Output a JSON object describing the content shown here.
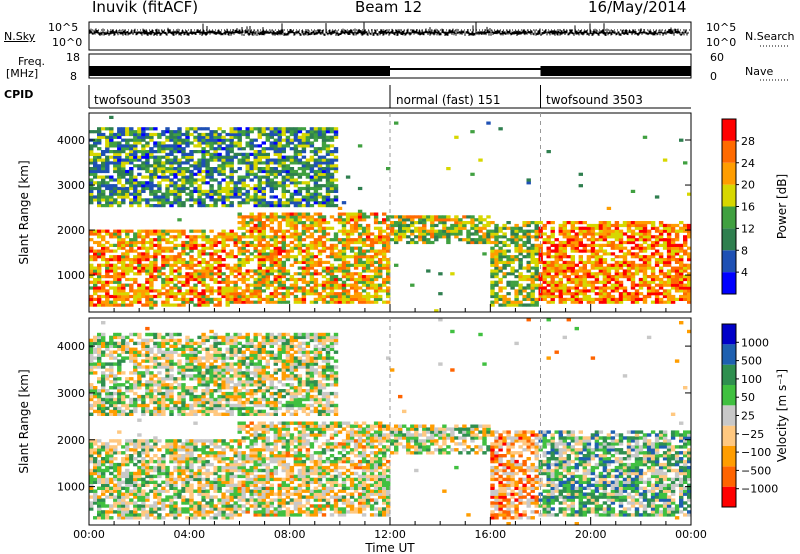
{
  "header": {
    "station": "Inuvik (fitACF)",
    "beam": "Beam 12",
    "date": "16/May/2014"
  },
  "strips": {
    "nsky_label": "N.Sky",
    "nsearch_label": "N.Search",
    "freq_label_top": "Freq.",
    "freq_label_unit": "[MHz]",
    "nave_label": "Nave",
    "cpid_label": "CPID",
    "noise_left_ticks": [
      "10^5",
      "10^0"
    ],
    "noise_right_ticks": [
      "10^5",
      "10^0"
    ],
    "freq_ticks": [
      "18",
      "8"
    ],
    "nave_ticks": [
      "60",
      "0"
    ]
  },
  "cpid_modes": [
    {
      "name": "twofsound 3503",
      "start_hour": 0
    },
    {
      "name": "normal (fast) 151",
      "start_hour": 12
    },
    {
      "name": "twofsound 3503",
      "start_hour": 18
    }
  ],
  "colors": {
    "power_scale": [
      "#0000ff",
      "#1e50b4",
      "#2f7f4f",
      "#40a040",
      "#d7d700",
      "#ff9d00",
      "#ff6a00",
      "#ff0000"
    ],
    "velocity_scale": [
      "#ff0000",
      "#ff6400",
      "#ff9d00",
      "#ffc880",
      "#c8c8c8",
      "#40c040",
      "#2f8f4f",
      "#1e60b0",
      "#0000c8"
    ]
  },
  "chart_data": [
    {
      "type": "heatmap",
      "panel": "power",
      "ylabel": "Slant Range [km]",
      "x_range_hours": [
        0,
        24
      ],
      "ylim": [
        180,
        4600
      ],
      "yticks": [
        1000,
        2000,
        3000,
        4000
      ],
      "colorbar": {
        "label": "Power [dB]",
        "ticks": [
          "28",
          "24",
          "20",
          "16",
          "12",
          "8",
          "4"
        ]
      },
      "echo_bands": [
        {
          "t0": 0,
          "t1": 6,
          "r0": 300,
          "r1": 2000,
          "level": 0.7
        },
        {
          "t0": 6,
          "t1": 12,
          "r0": 400,
          "r1": 2400,
          "level": 0.65
        },
        {
          "t0": 12,
          "t1": 16,
          "r0": 1700,
          "r1": 2300,
          "level": 0.55
        },
        {
          "t0": 16,
          "t1": 18,
          "r0": 300,
          "r1": 2200,
          "level": 0.5
        },
        {
          "t0": 18,
          "t1": 24,
          "r0": 400,
          "r1": 2200,
          "level": 0.75
        },
        {
          "t0": 0,
          "t1": 10,
          "r0": 2500,
          "r1": 4300,
          "level": 0.35
        }
      ]
    },
    {
      "type": "heatmap",
      "panel": "velocity",
      "ylabel": "Slant Range [km]",
      "xlabel": "Time UT",
      "x_range_hours": [
        0,
        24
      ],
      "xtick_labels": [
        "00:00",
        "04:00",
        "08:00",
        "12:00",
        "16:00",
        "20:00",
        "00:00"
      ],
      "ylim": [
        180,
        4600
      ],
      "yticks": [
        1000,
        2000,
        3000,
        4000
      ],
      "colorbar": {
        "label": "Velocity [m s⁻¹]",
        "ticks": [
          "1000",
          "500",
          "100",
          "50",
          "25",
          "−25",
          "−100",
          "−500",
          "−1000"
        ]
      },
      "echo_bands": [
        {
          "t0": 0,
          "t1": 6,
          "r0": 300,
          "r1": 2000,
          "level": 0.5
        },
        {
          "t0": 6,
          "t1": 12,
          "r0": 400,
          "r1": 2400,
          "level": 0.45
        },
        {
          "t0": 12,
          "t1": 16,
          "r0": 1700,
          "r1": 2300,
          "level": 0.5
        },
        {
          "t0": 16,
          "t1": 18,
          "r0": 300,
          "r1": 2200,
          "level": 0.3
        },
        {
          "t0": 18,
          "t1": 24,
          "r0": 400,
          "r1": 2200,
          "level": 0.6
        },
        {
          "t0": 0,
          "t1": 10,
          "r0": 2500,
          "r1": 4300,
          "level": 0.5
        }
      ]
    }
  ]
}
